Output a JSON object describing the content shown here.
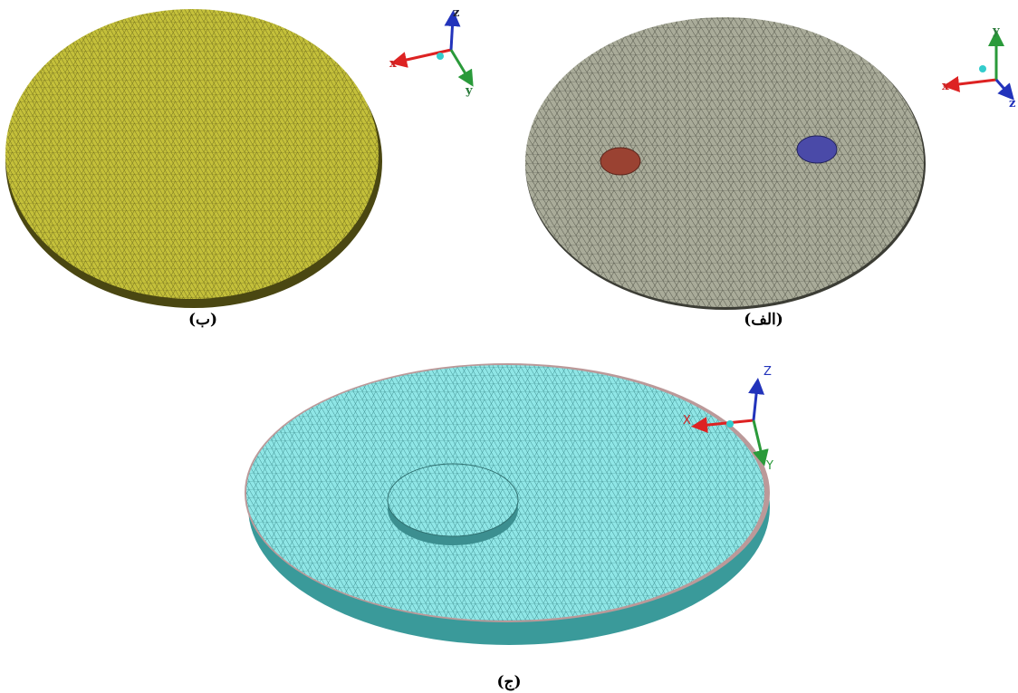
{
  "panels": [
    {
      "label": "(ب)",
      "axes": {
        "x": "x",
        "y": "y",
        "z": "z"
      }
    },
    {
      "label": "(الف)",
      "axes": {
        "x": "x",
        "y": "y",
        "z": "z"
      }
    },
    {
      "label": "(ج)",
      "axes": {
        "x": "X",
        "y": "Y",
        "z": "Z"
      }
    }
  ]
}
